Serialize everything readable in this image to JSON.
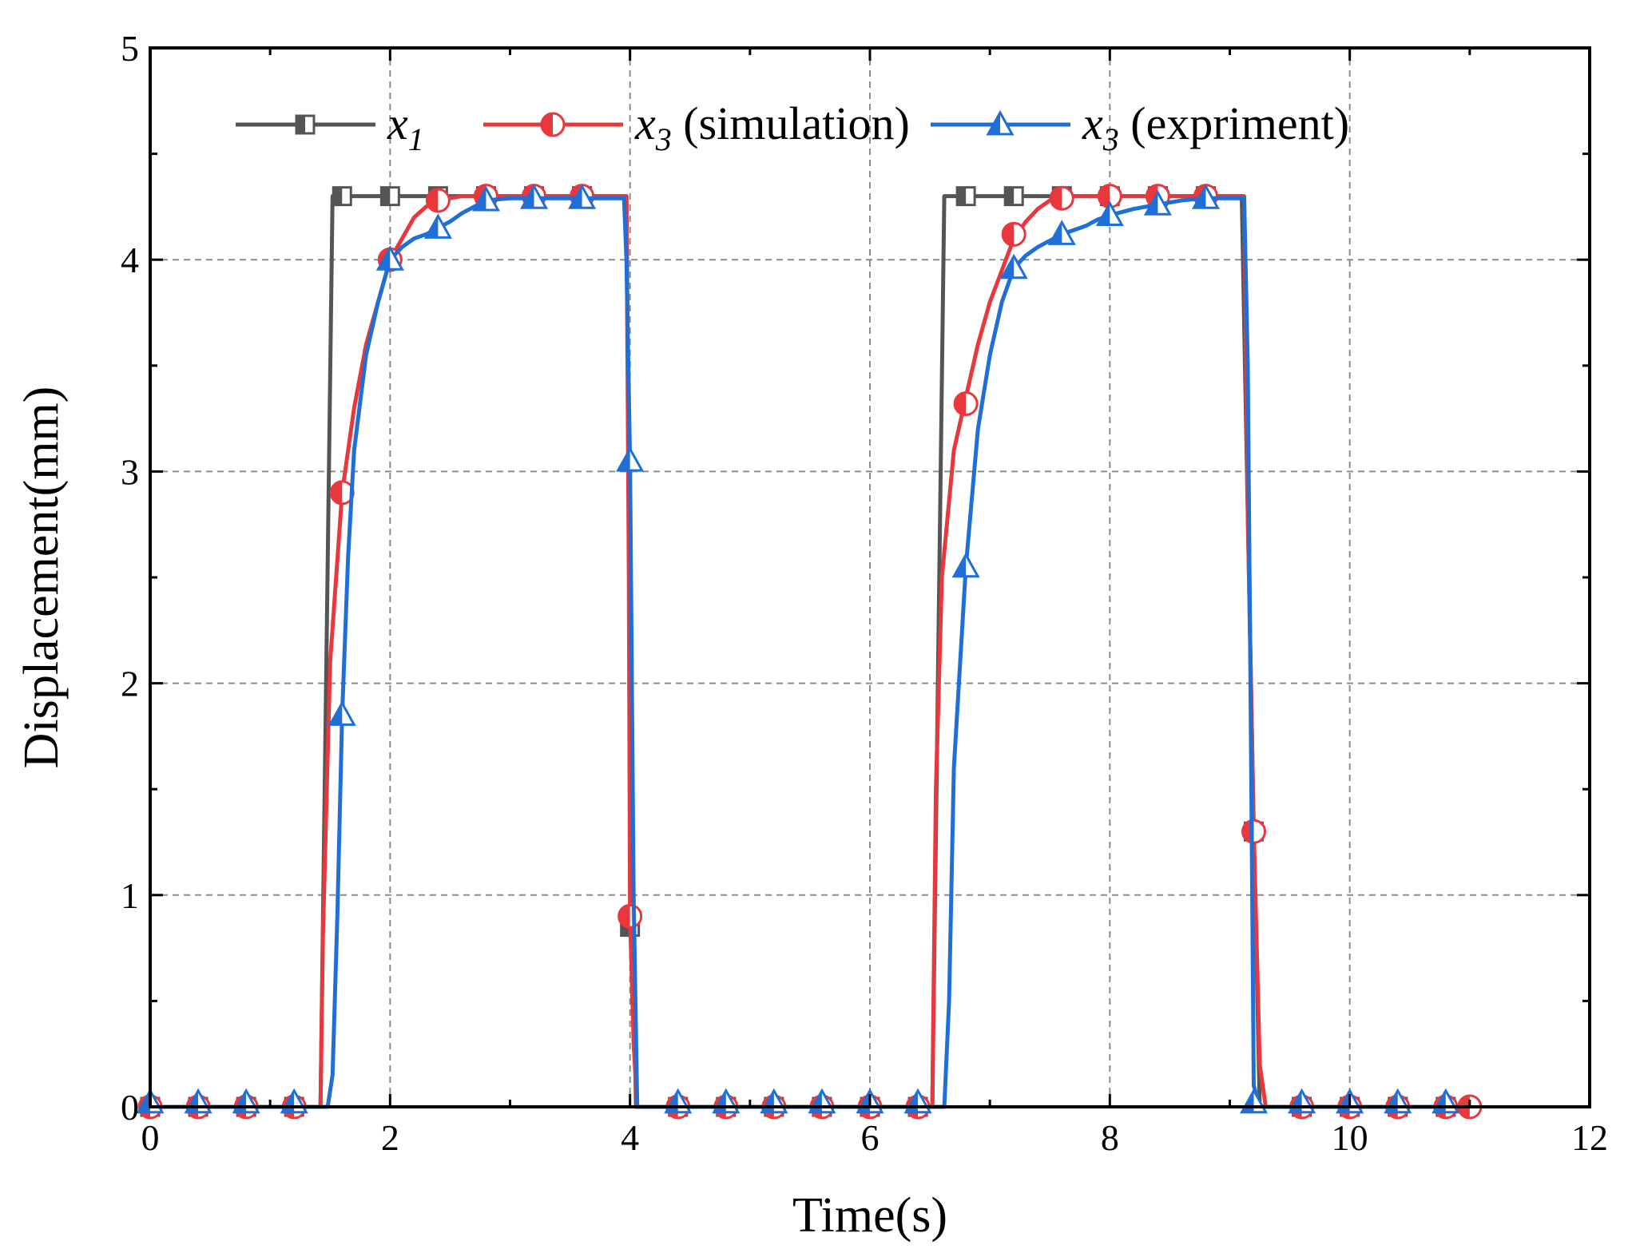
{
  "chart_data": {
    "type": "line",
    "xlabel": "Time(s)",
    "ylabel": "Displacement(mm)",
    "xlim": [
      0,
      12
    ],
    "ylim": [
      0,
      5
    ],
    "x_ticks": [
      "0",
      "2",
      "4",
      "6",
      "8",
      "10",
      "12"
    ],
    "y_ticks": [
      "0",
      "1",
      "2",
      "3",
      "4",
      "5"
    ],
    "grid": true,
    "legend_position": "top",
    "series": [
      {
        "name": "x1",
        "legend_var": "x",
        "legend_sub": "1",
        "legend_suffix": "",
        "color": "#555555",
        "marker": "square-half",
        "points": [
          [
            0,
            0
          ],
          [
            1.42,
            0
          ],
          [
            1.52,
            4.3
          ],
          [
            3.97,
            4.3
          ],
          [
            4.02,
            0.85
          ],
          [
            4.05,
            0
          ],
          [
            6.52,
            0
          ],
          [
            6.62,
            4.3
          ],
          [
            9.1,
            4.3
          ],
          [
            9.2,
            1.3
          ],
          [
            9.25,
            0
          ],
          [
            11.1,
            0
          ]
        ],
        "marker_points": [
          [
            0,
            0
          ],
          [
            0.4,
            0
          ],
          [
            0.8,
            0
          ],
          [
            1.2,
            0
          ],
          [
            1.6,
            4.3
          ],
          [
            2.0,
            4.3
          ],
          [
            2.4,
            4.3
          ],
          [
            2.8,
            4.3
          ],
          [
            3.2,
            4.3
          ],
          [
            3.6,
            4.3
          ],
          [
            4.0,
            0.85
          ],
          [
            4.4,
            0
          ],
          [
            4.8,
            0
          ],
          [
            5.2,
            0
          ],
          [
            5.6,
            0
          ],
          [
            6.0,
            0
          ],
          [
            6.4,
            0
          ],
          [
            6.8,
            4.3
          ],
          [
            7.2,
            4.3
          ],
          [
            7.6,
            4.3
          ],
          [
            8.0,
            4.3
          ],
          [
            8.4,
            4.3
          ],
          [
            8.8,
            4.3
          ],
          [
            9.2,
            1.3
          ],
          [
            9.6,
            0
          ],
          [
            10.0,
            0
          ],
          [
            10.4,
            0
          ],
          [
            10.8,
            0
          ]
        ]
      },
      {
        "name": "x3 (simulation)",
        "legend_var": "x",
        "legend_sub": "3",
        "legend_suffix": " (simulation)",
        "color": "#e8383d",
        "marker": "circle-half",
        "points": [
          [
            0,
            0
          ],
          [
            1.42,
            0
          ],
          [
            1.44,
            0.8
          ],
          [
            1.5,
            2.1
          ],
          [
            1.6,
            2.9
          ],
          [
            1.7,
            3.3
          ],
          [
            1.8,
            3.6
          ],
          [
            1.9,
            3.8
          ],
          [
            2.0,
            4.0
          ],
          [
            2.1,
            4.1
          ],
          [
            2.2,
            4.2
          ],
          [
            2.3,
            4.25
          ],
          [
            2.4,
            4.28
          ],
          [
            2.6,
            4.3
          ],
          [
            3.97,
            4.3
          ],
          [
            3.99,
            2.5
          ],
          [
            4.0,
            0.9
          ],
          [
            4.03,
            0.3
          ],
          [
            4.06,
            0
          ],
          [
            6.52,
            0
          ],
          [
            6.55,
            1.5
          ],
          [
            6.6,
            2.5
          ],
          [
            6.7,
            3.1
          ],
          [
            6.8,
            3.35
          ],
          [
            6.9,
            3.6
          ],
          [
            7.0,
            3.8
          ],
          [
            7.1,
            3.95
          ],
          [
            7.2,
            4.1
          ],
          [
            7.3,
            4.18
          ],
          [
            7.4,
            4.24
          ],
          [
            7.5,
            4.28
          ],
          [
            7.7,
            4.3
          ],
          [
            9.12,
            4.3
          ],
          [
            9.15,
            2.8
          ],
          [
            9.2,
            1.3
          ],
          [
            9.25,
            0.2
          ],
          [
            9.3,
            0
          ],
          [
            11.1,
            0
          ]
        ],
        "marker_points": [
          [
            0,
            0
          ],
          [
            0.4,
            0
          ],
          [
            0.8,
            0
          ],
          [
            1.2,
            0
          ],
          [
            1.6,
            2.9
          ],
          [
            2.0,
            4.0
          ],
          [
            2.4,
            4.28
          ],
          [
            2.8,
            4.3
          ],
          [
            3.2,
            4.3
          ],
          [
            3.6,
            4.3
          ],
          [
            4.0,
            0.9
          ],
          [
            4.4,
            0
          ],
          [
            4.8,
            0
          ],
          [
            5.2,
            0
          ],
          [
            5.6,
            0
          ],
          [
            6.0,
            0
          ],
          [
            6.4,
            0
          ],
          [
            6.8,
            3.32
          ],
          [
            7.2,
            4.12
          ],
          [
            7.6,
            4.29
          ],
          [
            8.0,
            4.3
          ],
          [
            8.4,
            4.3
          ],
          [
            8.8,
            4.3
          ],
          [
            9.2,
            1.3
          ],
          [
            9.6,
            0
          ],
          [
            10.0,
            0
          ],
          [
            10.4,
            0
          ],
          [
            10.8,
            0
          ],
          [
            11.0,
            0
          ]
        ]
      },
      {
        "name": "x3 (expriment)",
        "legend_var": "x",
        "legend_sub": "3",
        "legend_suffix": " (expriment)",
        "color": "#1f6fd6",
        "marker": "triangle-half",
        "points": [
          [
            0,
            0
          ],
          [
            1.48,
            0
          ],
          [
            1.52,
            0.15
          ],
          [
            1.56,
            0.9
          ],
          [
            1.6,
            1.85
          ],
          [
            1.65,
            2.6
          ],
          [
            1.7,
            3.1
          ],
          [
            1.8,
            3.55
          ],
          [
            1.9,
            3.8
          ],
          [
            2.0,
            4.0
          ],
          [
            2.1,
            4.06
          ],
          [
            2.2,
            4.1
          ],
          [
            2.3,
            4.12
          ],
          [
            2.4,
            4.15
          ],
          [
            2.5,
            4.18
          ],
          [
            2.6,
            4.22
          ],
          [
            2.8,
            4.28
          ],
          [
            3.0,
            4.29
          ],
          [
            3.95,
            4.29
          ],
          [
            3.97,
            4.0
          ],
          [
            4.0,
            3.05
          ],
          [
            4.03,
            1.0
          ],
          [
            4.06,
            0
          ],
          [
            6.62,
            0
          ],
          [
            6.66,
            0.5
          ],
          [
            6.7,
            1.6
          ],
          [
            6.8,
            2.55
          ],
          [
            6.9,
            3.2
          ],
          [
            7.0,
            3.55
          ],
          [
            7.1,
            3.8
          ],
          [
            7.2,
            3.96
          ],
          [
            7.3,
            4.02
          ],
          [
            7.4,
            4.06
          ],
          [
            7.5,
            4.09
          ],
          [
            7.6,
            4.12
          ],
          [
            7.7,
            4.14
          ],
          [
            7.8,
            4.16
          ],
          [
            7.9,
            4.19
          ],
          [
            8.0,
            4.21
          ],
          [
            8.2,
            4.24
          ],
          [
            8.4,
            4.26
          ],
          [
            8.6,
            4.28
          ],
          [
            8.8,
            4.29
          ],
          [
            9.12,
            4.29
          ],
          [
            9.15,
            3.5
          ],
          [
            9.18,
            1.5
          ],
          [
            9.2,
            0.1
          ],
          [
            9.25,
            0
          ],
          [
            10.8,
            0
          ]
        ],
        "marker_points": [
          [
            0,
            0.02
          ],
          [
            0.4,
            0.02
          ],
          [
            0.8,
            0.02
          ],
          [
            1.2,
            0.02
          ],
          [
            1.6,
            1.85
          ],
          [
            2.0,
            4.0
          ],
          [
            2.4,
            4.15
          ],
          [
            2.8,
            4.28
          ],
          [
            3.2,
            4.29
          ],
          [
            3.6,
            4.29
          ],
          [
            4.0,
            3.05
          ],
          [
            4.4,
            0.02
          ],
          [
            4.8,
            0.02
          ],
          [
            5.2,
            0.02
          ],
          [
            5.6,
            0.02
          ],
          [
            6.0,
            0.02
          ],
          [
            6.4,
            0.02
          ],
          [
            6.8,
            2.55
          ],
          [
            7.2,
            3.96
          ],
          [
            7.6,
            4.12
          ],
          [
            8.0,
            4.21
          ],
          [
            8.4,
            4.26
          ],
          [
            8.8,
            4.29
          ],
          [
            9.2,
            0.02
          ],
          [
            9.6,
            0.02
          ],
          [
            10.0,
            0.02
          ],
          [
            10.4,
            0.02
          ],
          [
            10.8,
            0.02
          ]
        ]
      }
    ]
  }
}
